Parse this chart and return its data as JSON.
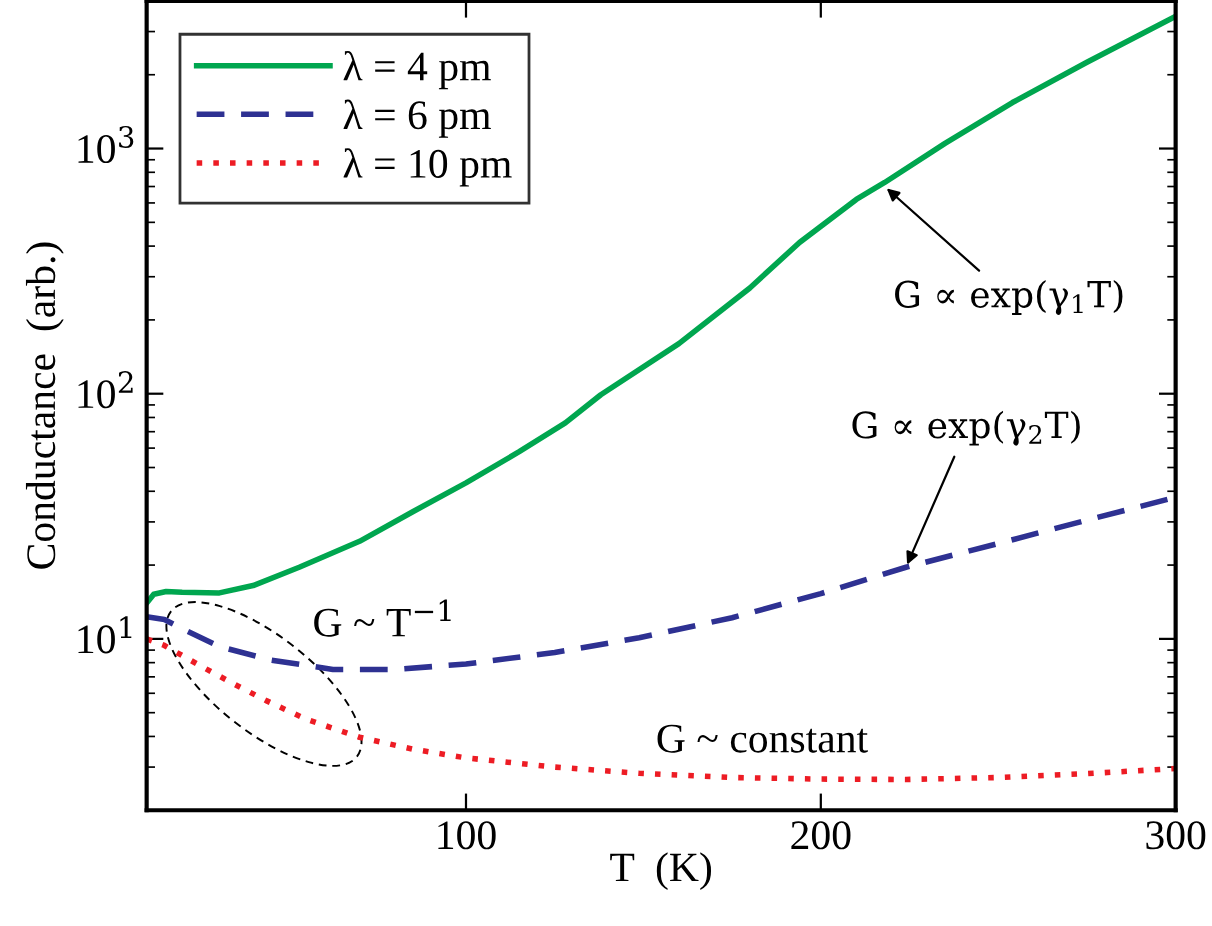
{
  "chart_data": {
    "type": "line",
    "xlabel": "T  (K)",
    "ylabel": "Conductance  (arb.)",
    "xlim": [
      10,
      300
    ],
    "xticks": [
      100,
      200,
      300
    ],
    "ylim": [
      2,
      4000
    ],
    "yticks": [
      {
        "value": 10,
        "label": "10$^{1}$"
      },
      {
        "value": 100,
        "label": "10$^{2}$"
      },
      {
        "value": 1000,
        "label": "10$^{3}$"
      }
    ],
    "log": "y",
    "grid": false,
    "legend": "top left",
    "series": [
      {
        "name": "λ = 4 pm",
        "color": "#00a64f",
        "line_style": "solid",
        "x": [
          10,
          12,
          15.5,
          20,
          30.5,
          40,
          53,
          70,
          85,
          100,
          115,
          128,
          138,
          160,
          180,
          194,
          210,
          218,
          235,
          254,
          275,
          300
        ],
        "values": [
          14.0,
          15.2,
          15.6,
          15.5,
          15.4,
          16.5,
          19.6,
          25,
          33,
          43.3,
          58,
          76,
          99,
          160,
          270,
          414,
          620,
          727,
          1050,
          1540,
          2250,
          3460
        ]
      },
      {
        "name": "λ = 6 pm",
        "color": "#2e3192",
        "line_style": "dashed",
        "x": [
          10,
          15,
          20,
          30.5,
          45,
          62.5,
          80,
          100,
          125,
          148.8,
          175,
          200,
          224,
          250,
          275,
          300
        ],
        "values": [
          12.3,
          12.0,
          11.0,
          9.3,
          8.2,
          7.5,
          7.5,
          7.9,
          8.8,
          10.1,
          12.2,
          15.3,
          19.6,
          24.5,
          30.5,
          37.8
        ]
      },
      {
        "name": "λ = 10 pm",
        "color": "#ed1c24",
        "line_style": "dotted",
        "x": [
          10,
          15,
          25.6,
          35,
          43.7,
          55,
          70,
          85,
          100,
          125,
          148.8,
          175,
          200,
          224,
          250,
          275,
          300
        ],
        "values": [
          10.0,
          9.4,
          7.7,
          6.5,
          5.6,
          4.7,
          3.97,
          3.55,
          3.27,
          3.0,
          2.83,
          2.72,
          2.68,
          2.67,
          2.72,
          2.82,
          2.96
        ]
      }
    ],
    "annotations": [
      {
        "text": "G ∝ exp(γ$_{1}$T)",
        "x": 218,
        "y": 700
      },
      {
        "text": "G ∝ exp(γ$_{2}$T)",
        "x": 224,
        "y": 19.6
      },
      "G ~ T$^{−1}$",
      "G ~ constant"
    ]
  }
}
